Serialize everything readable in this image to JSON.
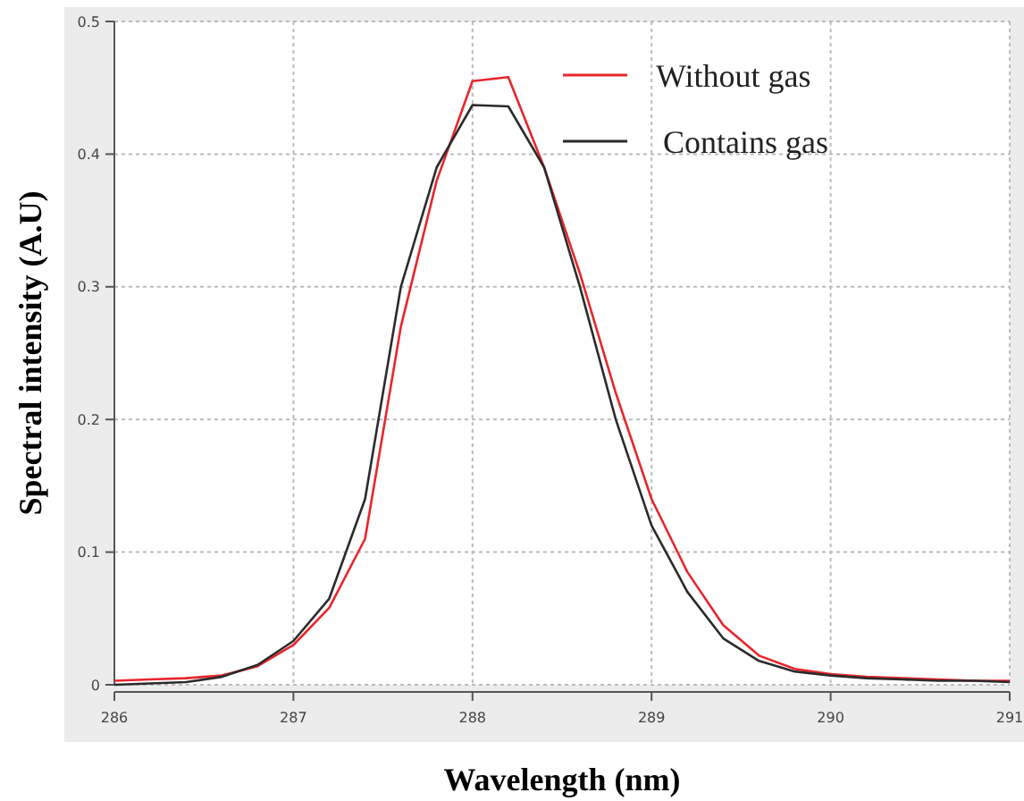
{
  "chart_data": {
    "type": "line",
    "xlabel": "Wavelength (nm)",
    "ylabel": "Spectral intensity (A.U)",
    "x": [
      286.0,
      286.2,
      286.4,
      286.6,
      286.8,
      287.0,
      287.2,
      287.4,
      287.6,
      287.8,
      288.0,
      288.2,
      288.4,
      288.6,
      288.8,
      289.0,
      289.2,
      289.4,
      289.6,
      289.8,
      290.0,
      290.2,
      290.4,
      290.6,
      290.8,
      291.0
    ],
    "series": [
      {
        "name": "Without gas",
        "color": "#e8262d",
        "values": [
          0.003,
          0.004,
          0.005,
          0.007,
          0.014,
          0.03,
          0.058,
          0.11,
          0.27,
          0.38,
          0.455,
          0.458,
          0.39,
          0.31,
          0.22,
          0.14,
          0.085,
          0.045,
          0.022,
          0.012,
          0.008,
          0.006,
          0.005,
          0.004,
          0.003,
          0.003
        ]
      },
      {
        "name": "Contains gas",
        "color": "#2b2b2b",
        "values": [
          0.0,
          0.001,
          0.002,
          0.006,
          0.015,
          0.033,
          0.065,
          0.14,
          0.3,
          0.39,
          0.437,
          0.436,
          0.39,
          0.3,
          0.2,
          0.12,
          0.07,
          0.035,
          0.018,
          0.01,
          0.007,
          0.005,
          0.004,
          0.003,
          0.003,
          0.002
        ]
      }
    ],
    "xlim": [
      286,
      291
    ],
    "xticks": [
      286,
      287,
      288,
      289,
      290,
      291
    ],
    "ylim": [
      0,
      0.5
    ],
    "yticks": [
      0,
      0.1,
      0.2,
      0.3,
      0.4,
      0.5
    ],
    "grid": true,
    "legend": "top right",
    "line_style": "solid",
    "marker": "none"
  }
}
